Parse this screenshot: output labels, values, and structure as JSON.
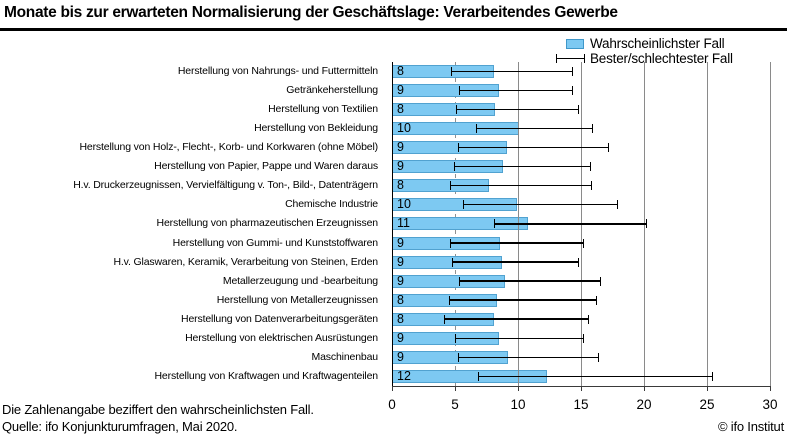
{
  "header": {
    "title": "Monate bis zur erwarteten Normalisierung der Geschäftslage: Verarbeitendes Gewerbe"
  },
  "legend": {
    "most_likely": "Wahrscheinlichster Fall",
    "best_worst": "Bester/schlechtester Fall"
  },
  "footer": {
    "note": "Die Zahlenangabe beziffert den wahrscheinlichsten Fall.",
    "source": "Quelle: ifo Konjunkturumfragen, Mai 2020.",
    "copyright": "© ifo Institut"
  },
  "colors": {
    "bar_fill": "#7dc9f2",
    "bar_border": "#3f97c9",
    "gridline": "#8a8a8a",
    "errorbar": "#000000",
    "axis": "#000000"
  },
  "chart_data": {
    "type": "bar",
    "orientation": "horizontal",
    "title": "Monate bis zur erwarteten Normalisierung der Geschäftslage: Verarbeitendes Gewerbe",
    "xlabel": "",
    "ylabel": "",
    "xlim": [
      0,
      30
    ],
    "xticks": [
      0,
      5,
      10,
      15,
      20,
      25,
      30
    ],
    "grid": "vertical solid gridlines at 10,15,20,25,30; dashed reference line at 5",
    "legend_position": "top-right",
    "legend": [
      "Wahrscheinlichster Fall",
      "Bester/schlechtester Fall"
    ],
    "categories": [
      "Herstellung von Nahrungs- und Futtermitteln",
      "Getränkeherstellung",
      "Herstellung von Textilien",
      "Herstellung von Bekleidung",
      "Herstellung von Holz-, Flecht-, Korb- und Korkwaren (ohne Möbel)",
      "Herstellung von Papier, Pappe und Waren daraus",
      "H.v. Druckerzeugnissen, Vervielfältigung v. Ton-, Bild-, Datenträgern",
      "Chemische Industrie",
      "Herstellung von pharmazeutischen Erzeugnissen",
      "Herstellung von Gummi- und Kunststoffwaren",
      "H.v. Glaswaren, Keramik, Verarbeitung von Steinen, Erden",
      "Metallerzeugung und -bearbeitung",
      "Herstellung von Metallerzeugnissen",
      "Herstellung von Datenverarbeitungsgeräten",
      "Herstellung von elektrischen Ausrüstungen",
      "Maschinenbau",
      "Herstellung von Kraftwagen und Kraftwagenteilen"
    ],
    "series": [
      {
        "name": "Wahrscheinlichster Fall",
        "type": "bar",
        "values": [
          8,
          9,
          8,
          10,
          9,
          9,
          8,
          10,
          11,
          9,
          9,
          9,
          8,
          8,
          9,
          9,
          12
        ],
        "drawn_lengths": [
          8.1,
          8.5,
          8.2,
          10.1,
          9.1,
          8.8,
          7.7,
          9.9,
          10.8,
          8.6,
          8.7,
          9.0,
          8.3,
          8.1,
          8.5,
          9.2,
          12.3
        ]
      },
      {
        "name": "Bester/schlechtester Fall",
        "type": "errorbar",
        "ranges": [
          [
            4.7,
            14.2
          ],
          [
            5.3,
            14.2
          ],
          [
            5.1,
            14.7
          ],
          [
            6.7,
            15.8
          ],
          [
            5.2,
            17.1
          ],
          [
            4.9,
            15.6
          ],
          [
            4.6,
            15.7
          ],
          [
            5.6,
            17.8
          ],
          [
            8.1,
            20.1
          ],
          [
            4.6,
            15.1
          ],
          [
            4.8,
            14.7
          ],
          [
            5.3,
            16.4
          ],
          [
            4.5,
            16.1
          ],
          [
            4.1,
            15.5
          ],
          [
            5.0,
            15.1
          ],
          [
            5.2,
            16.3
          ],
          [
            6.8,
            25.3
          ]
        ]
      }
    ]
  }
}
